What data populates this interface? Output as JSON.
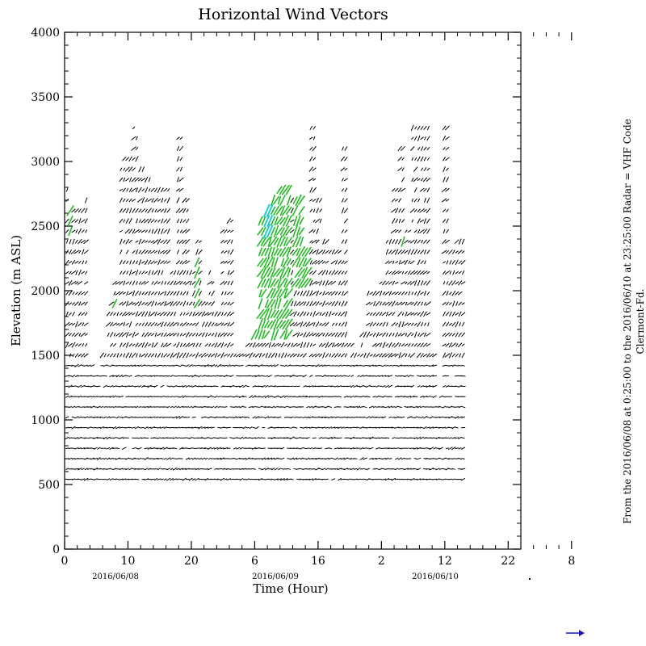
{
  "chart_data": {
    "type": "vector-field",
    "title": "Horizontal Wind Vectors",
    "xlabel": "Time (Hour)",
    "ylabel": "Elevation (m ASL)",
    "xlim": [
      0,
      72
    ],
    "ylim": [
      0,
      4000
    ],
    "x_tick_labels": [
      "0",
      "10",
      "20",
      "6",
      "16",
      "2",
      "12",
      "22",
      "8"
    ],
    "y_tick_labels": [
      "0",
      "500",
      "1000",
      "1500",
      "2000",
      "2500",
      "3000",
      "3500",
      "4000"
    ],
    "date_labels": [
      "2016/06/08",
      "2016/06/09",
      "2016/06/10"
    ],
    "side_text_1": "From the 2016/06/08 at  0:25:00 to the 2016/06/10 at 23:25:00 Radar = VHF Code",
    "side_text_2": "Clermont-Fd.",
    "grid": false,
    "colors": {
      "main": "#000000",
      "strong": "#22bb22",
      "strongest": "#22cccc",
      "legend_arrow": "#1515c8"
    },
    "time_step_hours": 0.5,
    "column_top_elevations": [
      {
        "x": 0.4,
        "top": 2780
      },
      {
        "x": 1,
        "top": 2650
      },
      {
        "x": 2,
        "top": 2650
      },
      {
        "x": 3,
        "top": 2700
      },
      {
        "x": 4,
        "top": 1450
      },
      {
        "x": 5,
        "top": 1400
      },
      {
        "x": 6,
        "top": 1500
      },
      {
        "x": 7,
        "top": 1900
      },
      {
        "x": 8,
        "top": 2100
      },
      {
        "x": 9,
        "top": 3080
      },
      {
        "x": 10,
        "top": 3080
      },
      {
        "x": 11,
        "top": 3300
      },
      {
        "x": 12,
        "top": 3000
      },
      {
        "x": 13,
        "top": 2900
      },
      {
        "x": 14,
        "top": 2800
      },
      {
        "x": 15,
        "top": 2800
      },
      {
        "x": 16,
        "top": 2800
      },
      {
        "x": 17,
        "top": 2150
      },
      {
        "x": 18,
        "top": 3200
      },
      {
        "x": 19,
        "top": 2700
      },
      {
        "x": 20,
        "top": 2150
      },
      {
        "x": 21,
        "top": 2400
      },
      {
        "x": 22,
        "top": 1900
      },
      {
        "x": 23,
        "top": 2200
      },
      {
        "x": 24,
        "top": 1850
      },
      {
        "x": 25,
        "top": 2500
      },
      {
        "x": 26,
        "top": 2550
      },
      {
        "x": 27,
        "top": 1500
      },
      {
        "x": 28,
        "top": 1550
      },
      {
        "x": 29,
        "top": 1600
      },
      {
        "x": 30,
        "top": 1700
      },
      {
        "x": 31,
        "top": 2550
      },
      {
        "x": 32,
        "top": 2650
      },
      {
        "x": 33,
        "top": 2750
      },
      {
        "x": 34,
        "top": 2800
      },
      {
        "x": 35,
        "top": 2850
      },
      {
        "x": 36,
        "top": 2700
      },
      {
        "x": 37,
        "top": 2700
      },
      {
        "x": 38,
        "top": 2300
      },
      {
        "x": 39,
        "top": 3300
      },
      {
        "x": 40,
        "top": 2700
      },
      {
        "x": 41,
        "top": 2400
      },
      {
        "x": 42,
        "top": 2300
      },
      {
        "x": 43,
        "top": 2300
      },
      {
        "x": 44,
        "top": 3100
      },
      {
        "x": 45,
        "top": 1600
      },
      {
        "x": 46,
        "top": 1500
      },
      {
        "x": 47,
        "top": 1700
      },
      {
        "x": 48,
        "top": 2000
      },
      {
        "x": 49,
        "top": 2000
      },
      {
        "x": 50,
        "top": 2100
      },
      {
        "x": 51,
        "top": 2400
      },
      {
        "x": 52,
        "top": 2800
      },
      {
        "x": 53,
        "top": 3150
      },
      {
        "x": 54,
        "top": 2500
      },
      {
        "x": 55,
        "top": 3300
      },
      {
        "x": 56,
        "top": 3300
      },
      {
        "x": 57,
        "top": 3300
      },
      {
        "x": 58,
        "top": 1500
      },
      {
        "x": 59,
        "top": 1200
      },
      {
        "x": 60,
        "top": 3300
      },
      {
        "x": 61,
        "top": 2300
      },
      {
        "x": 62,
        "top": 2400
      },
      {
        "x": 63,
        "top": 2450
      }
    ],
    "elevation_bottom": 540,
    "elevation_step": 80,
    "strong_wind_regions": [
      {
        "x_from": 0.5,
        "x_to": 1.2,
        "z_from": 2450,
        "z_to": 2700
      },
      {
        "x_from": 7.8,
        "x_to": 8.3,
        "z_from": 1850,
        "z_to": 1950
      },
      {
        "x_from": 20.5,
        "x_to": 21.2,
        "z_from": 1900,
        "z_to": 2250
      },
      {
        "x_from": 28.5,
        "x_to": 35.5,
        "z_from": 1600,
        "z_to": 2800
      },
      {
        "x_from": 36,
        "x_to": 38.5,
        "z_from": 2000,
        "z_to": 2750
      },
      {
        "x_from": 45,
        "x_to": 45.5,
        "z_from": 3050,
        "z_to": 3150
      },
      {
        "x_from": 53,
        "x_to": 53.7,
        "z_from": 2350,
        "z_to": 2420
      },
      {
        "x_from": 58,
        "x_to": 59,
        "z_from": 3250,
        "z_to": 3350
      },
      {
        "x_from": 59,
        "x_to": 59.7,
        "z_from": 2200,
        "z_to": 2300
      }
    ],
    "strongest_region": {
      "x_from": 31.5,
      "x_to": 32.5,
      "z_from": 2450,
      "z_to": 2650
    }
  }
}
